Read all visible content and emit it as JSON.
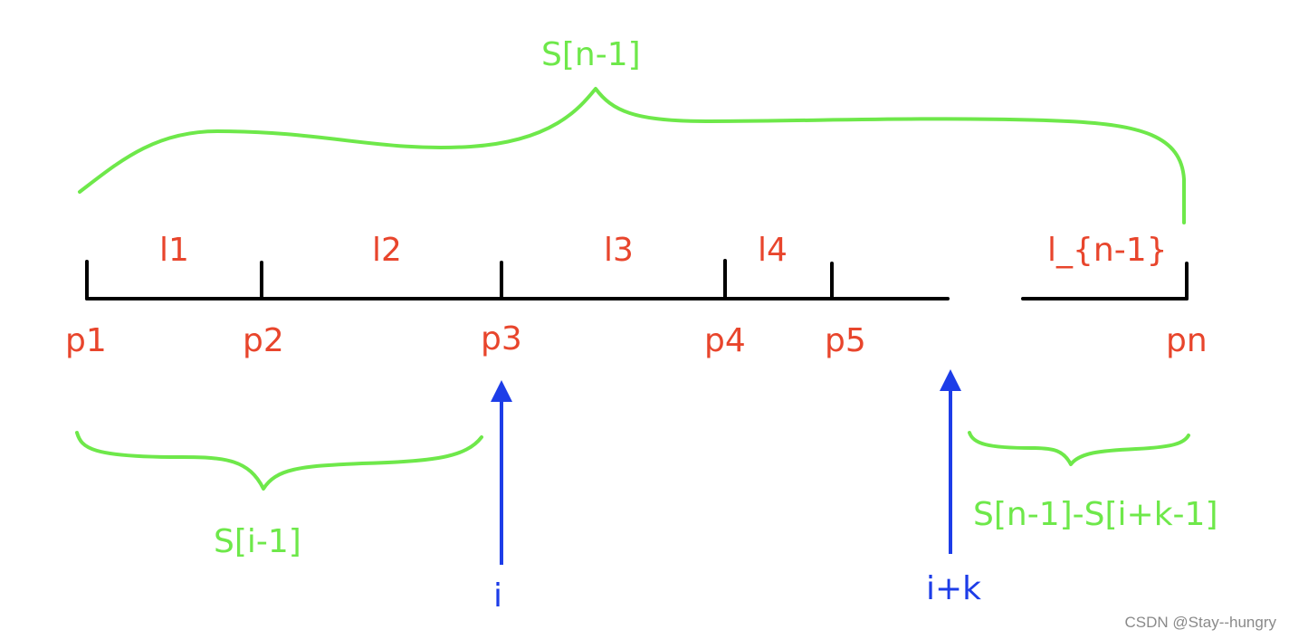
{
  "colors": {
    "axis": "#000000",
    "segment_label": "#e8452c",
    "sum_brace": "#6ee84a",
    "pointer": "#1d3de8",
    "watermark": "#8a8a8a"
  },
  "segments": {
    "l1": "l1",
    "l2": "l2",
    "l3": "l3",
    "l4": "l4",
    "l_last": "l_{n-1}"
  },
  "points": {
    "p1": "p1",
    "p2": "p2",
    "p3": "p3",
    "p4": "p4",
    "p5": "p5",
    "pn": "pn"
  },
  "sums": {
    "total": "S[n-1]",
    "prefix": "S[i-1]",
    "suffix": "S[n-1]-S[i+k-1]"
  },
  "pointers": {
    "i": "i",
    "i_plus_k": "i+k"
  },
  "watermark": "CSDN @Stay--hungry"
}
